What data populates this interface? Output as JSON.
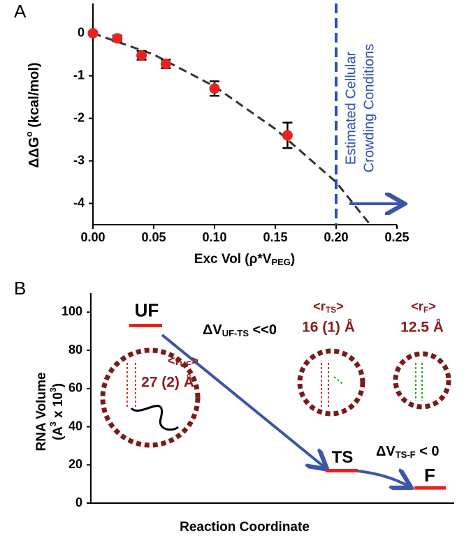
{
  "chart_data": [
    {
      "type": "scatter",
      "panel": "A",
      "x_label": {
        "main": "Exc Vol (ρ*V",
        "sub": "PEG",
        "tail": ")"
      },
      "y_label": {
        "main": "ΔΔG",
        "sup": "o",
        "tail": " (kcal/mol)"
      },
      "x": [
        0,
        0.02,
        0.04,
        0.06,
        0.1,
        0.16
      ],
      "values": [
        0,
        -0.12,
        -0.52,
        -0.72,
        -1.3,
        -2.4
      ],
      "errors": [
        0.04,
        0.07,
        0.1,
        0.1,
        0.17,
        0.3
      ],
      "color": "#e8221e",
      "fit": {
        "x": [
          0,
          0.05,
          0.1,
          0.15,
          0.2,
          0.228
        ],
        "y": [
          0,
          -0.5,
          -1.25,
          -2.25,
          -3.5,
          -4.5
        ],
        "color": "#333333"
      },
      "vline": {
        "x": 0.2,
        "color": "#2f4fb5",
        "text": [
          "Estimated Cellular",
          "Crowding Conditions"
        ]
      },
      "xlim": [
        0,
        0.25
      ],
      "ylim": [
        -4.5,
        0.7
      ],
      "xticks": [
        {
          "value": 0,
          "label": "0.00"
        },
        {
          "value": 0.05,
          "label": "0.05"
        },
        {
          "value": 0.1,
          "label": "0.10"
        },
        {
          "value": 0.15,
          "label": "0.15"
        },
        {
          "value": 0.2,
          "label": "0.20"
        },
        {
          "value": 0.25,
          "label": "0.25"
        }
      ],
      "yticks": [
        0,
        -1,
        -2,
        -3,
        -4
      ]
    },
    {
      "type": "level",
      "panel": "B",
      "x_label": "Reaction Coordinate",
      "y_label": {
        "line1": "RNA Volume",
        "line2a": "(A",
        "sup": "3",
        "line2b": " x 10",
        "sup2": "3",
        "close": ")"
      },
      "categories": [
        "UF",
        "TS",
        "F"
      ],
      "values": [
        93,
        17,
        8
      ],
      "color": "#e8221e",
      "ylim": [
        0,
        110
      ],
      "yticks": [
        0,
        20,
        40,
        60,
        80,
        100
      ],
      "radii": [
        {
          "open": "<r",
          "sub": "UF",
          "close": ">",
          "value": "27 (2) Å"
        },
        {
          "open": "<r",
          "sub": "TS",
          "close": ">",
          "value": "16 (1) Å"
        },
        {
          "open": "<r",
          "sub": "F",
          "close": ">",
          "value": "12.5 Å"
        }
      ],
      "transitions": [
        {
          "main": "ΔV",
          "sub": "UF-TS",
          "tail": " <<0"
        },
        {
          "main": "ΔV",
          "sub": "TS-F",
          "tail": " < 0"
        }
      ]
    }
  ]
}
